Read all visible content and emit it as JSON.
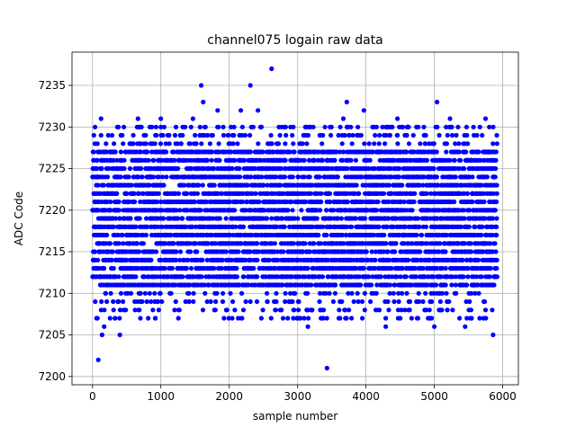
{
  "chart_data": {
    "type": "scatter",
    "title": "channel075 logain raw data",
    "xlabel": "sample number",
    "ylabel": "ADC Code",
    "xlim": [
      -300,
      6230
    ],
    "ylim": [
      7199,
      7239
    ],
    "xticks": [
      0,
      1000,
      2000,
      3000,
      4000,
      5000,
      6000
    ],
    "yticks": [
      7200,
      7205,
      7210,
      7215,
      7220,
      7225,
      7230,
      7235
    ],
    "grid": true,
    "marker_color": "#0000ff",
    "n_samples": 5920,
    "sample_step": 1,
    "core_range": [
      7211,
      7227
    ],
    "outliers": [
      {
        "x": 85,
        "y": 7202
      },
      {
        "x": 140,
        "y": 7205
      },
      {
        "x": 400,
        "y": 7205
      },
      {
        "x": 60,
        "y": 7207
      },
      {
        "x": 170,
        "y": 7206
      },
      {
        "x": 3430,
        "y": 7201
      },
      {
        "x": 3150,
        "y": 7206
      },
      {
        "x": 5000,
        "y": 7206
      },
      {
        "x": 5450,
        "y": 7206
      },
      {
        "x": 5860,
        "y": 7205
      },
      {
        "x": 4290,
        "y": 7206
      },
      {
        "x": 2620,
        "y": 7237
      },
      {
        "x": 1590,
        "y": 7235
      },
      {
        "x": 2310,
        "y": 7235
      },
      {
        "x": 1620,
        "y": 7233
      },
      {
        "x": 3720,
        "y": 7233
      },
      {
        "x": 5040,
        "y": 7233
      },
      {
        "x": 1470,
        "y": 7231
      },
      {
        "x": 665,
        "y": 7231
      },
      {
        "x": 125,
        "y": 7231
      },
      {
        "x": 3670,
        "y": 7231
      },
      {
        "x": 4460,
        "y": 7231
      },
      {
        "x": 5230,
        "y": 7231
      },
      {
        "x": 5750,
        "y": 7231
      },
      {
        "x": 2170,
        "y": 7232
      },
      {
        "x": 2420,
        "y": 7232
      },
      {
        "x": 1830,
        "y": 7232
      },
      {
        "x": 3970,
        "y": 7232
      },
      {
        "x": 1000,
        "y": 7231
      },
      {
        "x": 3230,
        "y": 7230
      }
    ]
  }
}
